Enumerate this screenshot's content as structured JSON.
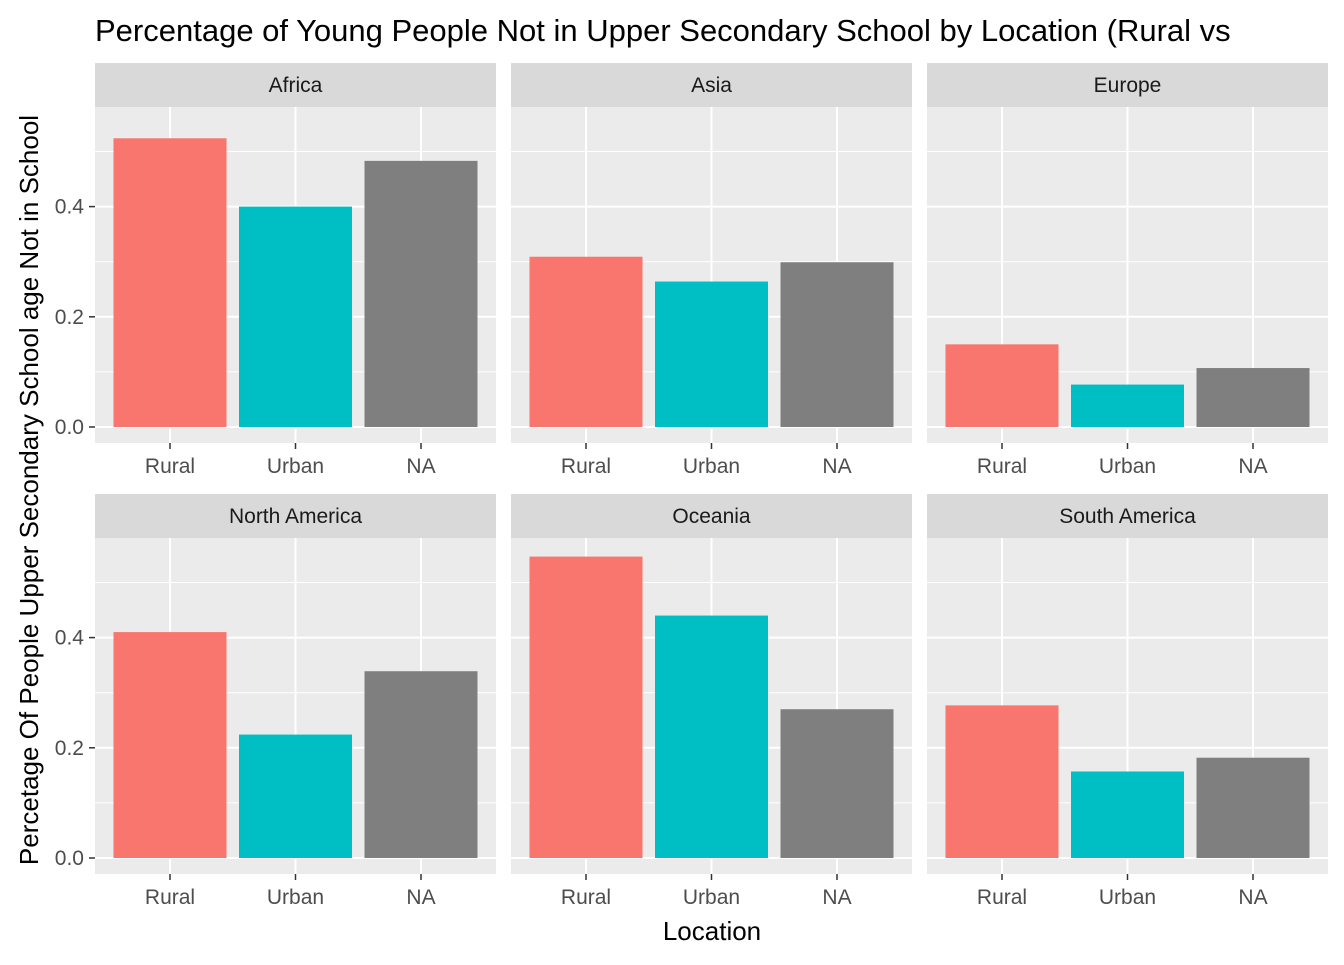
{
  "chart_data": {
    "type": "bar",
    "title": "Percentage of Young People Not in Upper Secondary School by Location (Rural vs",
    "xlabel": "Location",
    "ylabel": "Percetage Of People Upper Secondary School age Not in School",
    "categories": [
      "Rural",
      "Urban",
      "NA"
    ],
    "ylim": [
      0,
      0.6
    ],
    "yticks": [
      "0.0",
      "0.2",
      "0.4"
    ],
    "grid": true,
    "legend": "none",
    "colors": {
      "Rural": "#F8766D",
      "Urban": "#00BFC4",
      "NA": "#7F7F7F"
    },
    "panel_background": "#EBEBEB",
    "strip_background": "#D9D9D9",
    "facets": [
      {
        "name": "Africa",
        "values": [
          0.524,
          0.4,
          0.483
        ]
      },
      {
        "name": "Asia",
        "values": [
          0.309,
          0.264,
          0.299
        ]
      },
      {
        "name": "Europe",
        "values": [
          0.15,
          0.077,
          0.107
        ]
      },
      {
        "name": "North America",
        "values": [
          0.41,
          0.224,
          0.339
        ]
      },
      {
        "name": "Oceania",
        "values": [
          0.547,
          0.44,
          0.27
        ]
      },
      {
        "name": "South America",
        "values": [
          0.277,
          0.157,
          0.182
        ]
      }
    ]
  }
}
